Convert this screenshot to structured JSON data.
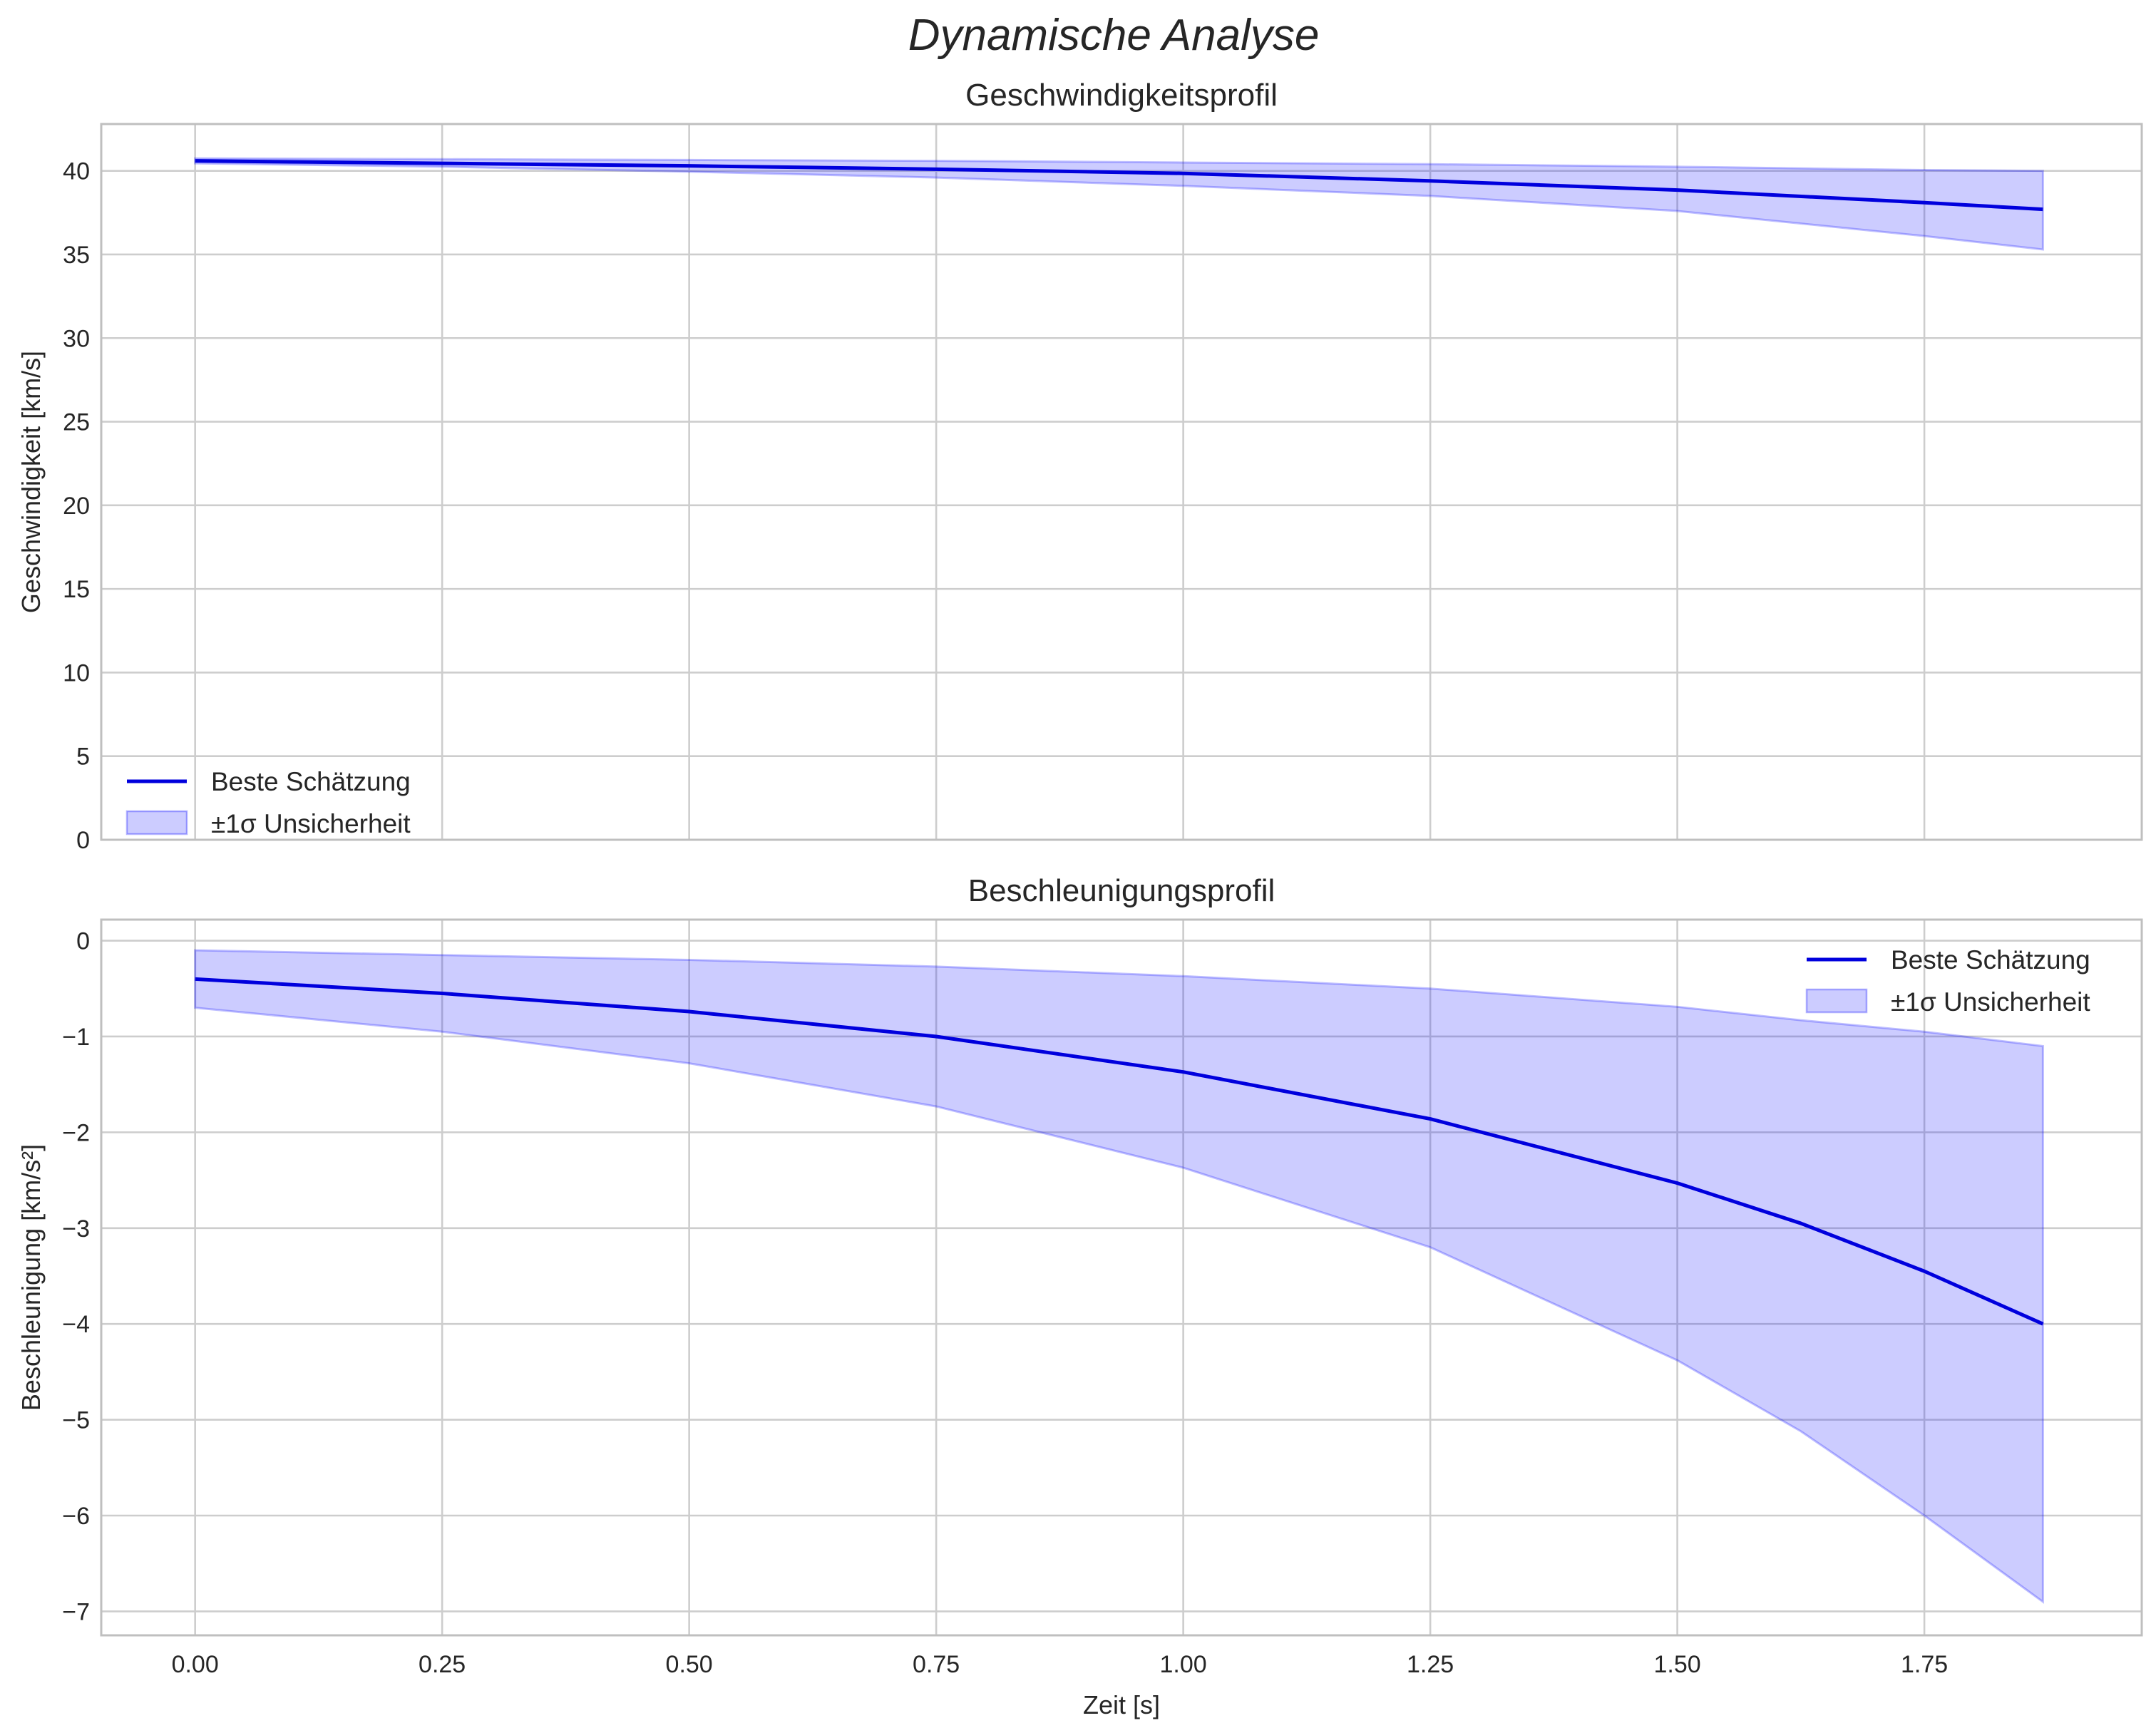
{
  "suptitle": "Dynamische Analyse",
  "colors": {
    "line": "#0000dd",
    "band_fill": "#0000ff",
    "band_fill_opacity": 0.2,
    "grid": "#cdcdcd",
    "frame": "#bfbfbf",
    "text": "#262626"
  },
  "chart_data": [
    {
      "type": "line",
      "title": "Geschwindigkeitsprofil",
      "xlabel": "",
      "ylabel": "Geschwindigkeit [km/s]",
      "xlim": [
        -0.095,
        1.97
      ],
      "ylim": [
        0,
        42.8
      ],
      "xticks": [
        0,
        0.25,
        0.5,
        0.75,
        1.0,
        1.25,
        1.5,
        1.75
      ],
      "xtick_labels": [],
      "yticks": [
        0,
        5,
        10,
        15,
        20,
        25,
        30,
        35,
        40
      ],
      "ytick_labels": [
        "0",
        "5",
        "10",
        "15",
        "20",
        "25",
        "30",
        "35",
        "40"
      ],
      "grid": true,
      "legend_position": "lower-left",
      "legend": [
        "Beste Schätzung",
        "±1σ Unsicherheit"
      ],
      "x": [
        0.0,
        0.25,
        0.5,
        0.75,
        1.0,
        1.25,
        1.5,
        1.75,
        1.87
      ],
      "series": [
        {
          "name": "Beste Schätzung",
          "values": [
            40.6,
            40.45,
            40.3,
            40.1,
            39.85,
            39.4,
            38.85,
            38.1,
            37.7
          ]
        }
      ],
      "band": {
        "name": "±1σ Unsicherheit",
        "lower": [
          40.45,
          40.25,
          39.95,
          39.6,
          39.1,
          38.5,
          37.6,
          36.1,
          35.3
        ],
        "upper": [
          40.75,
          40.7,
          40.65,
          40.6,
          40.5,
          40.4,
          40.25,
          40.05,
          40.0
        ]
      }
    },
    {
      "type": "line",
      "title": "Beschleunigungsprofil",
      "xlabel": "Zeit [s]",
      "ylabel": "Beschleunigung [km/s²]",
      "xlim": [
        -0.095,
        1.97
      ],
      "ylim": [
        -7.25,
        0.22
      ],
      "xticks": [
        0,
        0.25,
        0.5,
        0.75,
        1.0,
        1.25,
        1.5,
        1.75
      ],
      "xtick_labels": [
        "0.00",
        "0.25",
        "0.50",
        "0.75",
        "1.00",
        "1.25",
        "1.50",
        "1.75"
      ],
      "yticks": [
        0,
        -1,
        -2,
        -3,
        -4,
        -5,
        -6,
        -7
      ],
      "ytick_labels": [
        "0",
        "−1",
        "−2",
        "−3",
        "−4",
        "−5",
        "−6",
        "−7"
      ],
      "grid": true,
      "legend_position": "upper-right",
      "legend": [
        "Beste Schätzung",
        "±1σ Unsicherheit"
      ],
      "x": [
        0.0,
        0.25,
        0.5,
        0.75,
        1.0,
        1.25,
        1.5,
        1.625,
        1.75,
        1.87
      ],
      "series": [
        {
          "name": "Beste Schätzung",
          "values": [
            -0.4,
            -0.55,
            -0.74,
            -1.0,
            -1.37,
            -1.86,
            -2.53,
            -2.95,
            -3.45,
            -4.0
          ]
        }
      ],
      "band": {
        "name": "±1σ Unsicherheit",
        "lower": [
          -0.7,
          -0.95,
          -1.28,
          -1.73,
          -2.37,
          -3.2,
          -4.38,
          -5.12,
          -6.0,
          -6.9
        ],
        "upper": [
          -0.1,
          -0.15,
          -0.2,
          -0.27,
          -0.37,
          -0.5,
          -0.69,
          -0.83,
          -0.95,
          -1.1
        ]
      }
    }
  ]
}
